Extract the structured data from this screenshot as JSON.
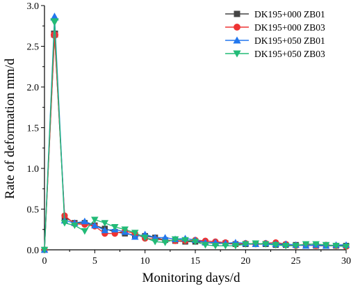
{
  "chart_data": {
    "type": "line",
    "xlabel": "Monitoring days/d",
    "ylabel": "Rate of deformation  mm/d",
    "xlim": [
      0,
      30
    ],
    "ylim": [
      0,
      3.0
    ],
    "x_ticks": [
      "0",
      "5",
      "10",
      "15",
      "20",
      "25",
      "30"
    ],
    "y_ticks": [
      "0.0",
      "0.5",
      "1.0",
      "1.5",
      "2.0",
      "2.5",
      "3.0"
    ],
    "grid": false,
    "legend_position": "top-right",
    "x": [
      0,
      1,
      2,
      3,
      4,
      5,
      6,
      7,
      8,
      9,
      10,
      11,
      12,
      13,
      14,
      15,
      16,
      17,
      18,
      19,
      20,
      21,
      22,
      23,
      24,
      25,
      26,
      27,
      28,
      29,
      30
    ],
    "series": [
      {
        "name": "DK195+000 ZB01",
        "color": "#444444",
        "marker": "square",
        "values": [
          0.0,
          2.65,
          0.4,
          0.33,
          0.33,
          0.3,
          0.26,
          0.22,
          0.2,
          0.18,
          0.17,
          0.15,
          0.12,
          0.11,
          0.1,
          0.1,
          0.09,
          0.08,
          0.08,
          0.07,
          0.07,
          0.07,
          0.07,
          0.06,
          0.06,
          0.06,
          0.06,
          0.05,
          0.05,
          0.05,
          0.05
        ]
      },
      {
        "name": "DK195+000 ZB03",
        "color": "#ee3333",
        "marker": "circle",
        "values": [
          0.0,
          2.64,
          0.42,
          0.32,
          0.31,
          0.29,
          0.2,
          0.2,
          0.23,
          0.2,
          0.14,
          0.13,
          0.12,
          0.11,
          0.11,
          0.12,
          0.11,
          0.1,
          0.09,
          0.07,
          0.08,
          0.07,
          0.08,
          0.09,
          0.07,
          0.05,
          0.06,
          0.05,
          0.06,
          0.05,
          0.04
        ]
      },
      {
        "name": "DK195+050 ZB01",
        "color": "#2277ee",
        "marker": "triangle-up",
        "values": [
          0.0,
          2.86,
          0.36,
          0.33,
          0.35,
          0.3,
          0.24,
          0.25,
          0.22,
          0.16,
          0.19,
          0.15,
          0.15,
          0.13,
          0.14,
          0.12,
          0.09,
          0.09,
          0.08,
          0.09,
          0.08,
          0.07,
          0.08,
          0.07,
          0.07,
          0.06,
          0.05,
          0.06,
          0.05,
          0.06,
          0.06
        ]
      },
      {
        "name": "DK195+050 ZB03",
        "color": "#22bb77",
        "marker": "triangle-down",
        "values": [
          0.0,
          2.8,
          0.33,
          0.3,
          0.23,
          0.37,
          0.33,
          0.28,
          0.25,
          0.21,
          0.15,
          0.1,
          0.09,
          0.13,
          0.12,
          0.1,
          0.06,
          0.05,
          0.05,
          0.05,
          0.07,
          0.08,
          0.07,
          0.06,
          0.05,
          0.05,
          0.07,
          0.07,
          0.06,
          0.05,
          0.04
        ]
      }
    ]
  }
}
